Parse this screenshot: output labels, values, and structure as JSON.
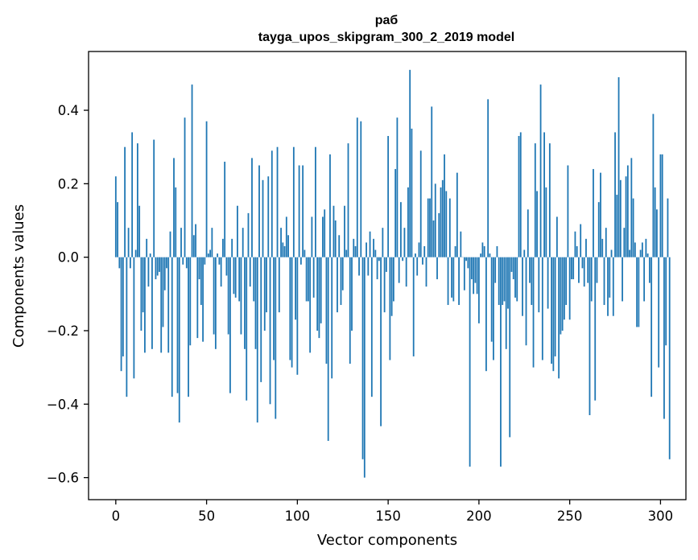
{
  "chart_data": {
    "type": "bar",
    "title": "раб",
    "subtitle": "tayga_upos_skipgram_300_2_2019 model",
    "xlabel": "Vector components",
    "ylabel": "Components values",
    "xlim": [
      -15,
      314
    ],
    "ylim": [
      -0.66,
      0.56
    ],
    "xticks": [
      0,
      50,
      100,
      150,
      200,
      250,
      300
    ],
    "yticks": [
      -0.6,
      -0.4,
      -0.2,
      0.0,
      0.2,
      0.4
    ],
    "ytick_labels": [
      "−0.6",
      "−0.4",
      "−0.2",
      "0.0",
      "0.2",
      "0.4"
    ],
    "xtick_labels": [
      "0",
      "50",
      "100",
      "150",
      "200",
      "250",
      "300"
    ],
    "bar_color": "#1f77b4",
    "values": [
      0.22,
      0.15,
      -0.03,
      -0.31,
      -0.27,
      0.3,
      -0.38,
      0.08,
      -0.03,
      0.34,
      -0.33,
      0.02,
      0.31,
      0.14,
      -0.2,
      -0.15,
      -0.26,
      0.05,
      -0.08,
      0.01,
      -0.25,
      0.32,
      -0.06,
      -0.05,
      -0.04,
      -0.26,
      -0.19,
      -0.09,
      -0.03,
      -0.26,
      0.07,
      -0.38,
      0.27,
      0.19,
      -0.37,
      -0.45,
      0.08,
      -0.02,
      0.38,
      -0.03,
      -0.38,
      -0.24,
      0.47,
      0.06,
      0.09,
      -0.22,
      -0.06,
      -0.13,
      -0.23,
      -0.02,
      0.37,
      0.01,
      0.02,
      0.08,
      -0.21,
      -0.25,
      0.01,
      -0.02,
      -0.08,
      0.05,
      0.26,
      -0.05,
      -0.21,
      -0.37,
      0.05,
      -0.1,
      -0.11,
      0.14,
      -0.12,
      -0.21,
      0.08,
      -0.25,
      -0.39,
      0.12,
      -0.08,
      0.27,
      -0.12,
      -0.25,
      -0.45,
      0.25,
      -0.34,
      0.21,
      -0.2,
      -0.15,
      0.22,
      -0.4,
      0.29,
      -0.28,
      -0.44,
      0.3,
      -0.15,
      0.08,
      0.04,
      0.03,
      0.11,
      0.06,
      -0.28,
      -0.3,
      0.3,
      -0.17,
      -0.32,
      0.25,
      -0.02,
      0.25,
      0.02,
      -0.12,
      -0.12,
      -0.26,
      0.11,
      -0.11,
      0.3,
      -0.2,
      -0.22,
      -0.18,
      0.11,
      0.13,
      -0.29,
      -0.5,
      0.28,
      -0.33,
      0.14,
      0.1,
      -0.15,
      0.06,
      -0.13,
      -0.09,
      0.14,
      0.02,
      0.31,
      -0.29,
      -0.2,
      0.05,
      0.03,
      0.38,
      -0.05,
      0.37,
      -0.55,
      -0.6,
      0.04,
      -0.05,
      0.07,
      -0.38,
      0.05,
      0.02,
      -0.06,
      -0.01,
      -0.46,
      0.08,
      -0.15,
      -0.04,
      0.33,
      -0.28,
      -0.16,
      -0.12,
      0.24,
      0.38,
      -0.07,
      0.15,
      -0.01,
      0.08,
      -0.08,
      0.19,
      0.51,
      0.35,
      -0.27,
      0.01,
      -0.05,
      0.04,
      0.29,
      -0.02,
      0.03,
      -0.08,
      0.16,
      0.16,
      0.41,
      0.1,
      0.2,
      -0.06,
      0.12,
      0.19,
      0.21,
      0.28,
      0.18,
      -0.13,
      0.16,
      -0.11,
      -0.12,
      0.03,
      0.23,
      -0.13,
      0.07,
      0.0,
      -0.09,
      -0.01,
      -0.03,
      -0.57,
      -0.06,
      -0.1,
      -0.07,
      -0.1,
      -0.18,
      0.01,
      0.04,
      0.03,
      -0.31,
      0.43,
      0.01,
      -0.23,
      -0.28,
      -0.07,
      0.03,
      -0.13,
      -0.57,
      -0.13,
      -0.12,
      -0.25,
      -0.14,
      -0.49,
      -0.04,
      -0.06,
      -0.11,
      -0.12,
      0.33,
      0.34,
      -0.16,
      0.02,
      -0.24,
      0.13,
      -0.07,
      -0.13,
      -0.3,
      0.31,
      0.18,
      -0.15,
      0.47,
      -0.28,
      0.34,
      0.19,
      -0.14,
      0.31,
      -0.29,
      -0.31,
      -0.27,
      0.11,
      -0.33,
      -0.21,
      -0.2,
      -0.17,
      -0.13,
      0.25,
      -0.17,
      -0.06,
      -0.06,
      0.07,
      0.03,
      -0.07,
      0.09,
      -0.03,
      -0.08,
      0.05,
      -0.07,
      -0.43,
      -0.12,
      0.24,
      -0.39,
      -0.07,
      0.15,
      0.23,
      0.05,
      -0.13,
      0.08,
      -0.16,
      -0.11,
      0.02,
      -0.16,
      0.34,
      0.17,
      0.49,
      0.21,
      -0.12,
      0.08,
      0.22,
      0.25,
      0.02,
      0.27,
      0.16,
      0.04,
      -0.19,
      -0.19,
      0.02,
      0.04,
      -0.12,
      0.05,
      0.01,
      -0.07,
      -0.38,
      0.39,
      0.19,
      0.13,
      -0.3,
      0.28,
      0.28,
      -0.44,
      -0.24,
      0.16,
      -0.55
    ]
  }
}
